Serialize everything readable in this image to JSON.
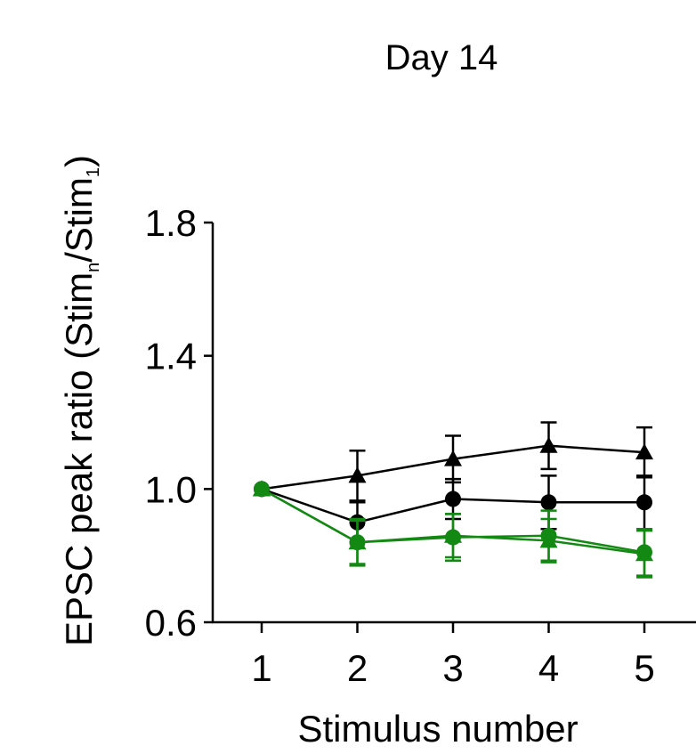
{
  "chart_data": {
    "type": "line",
    "title": "Day 14",
    "xlabel": "Stimulus number",
    "ylabel": {
      "prefix": "EPSC peak ratio (Stim",
      "sub1": "n",
      "mid": "/Stim",
      "sub2": "1",
      "suffix": ")"
    },
    "x": [
      1,
      2,
      3,
      4,
      5
    ],
    "xticks": [
      "1",
      "2",
      "3",
      "4",
      "5"
    ],
    "ylim": [
      0.6,
      1.8
    ],
    "yticks": [
      "0.6",
      "1.0",
      "1.4",
      "1.8"
    ],
    "grid": false,
    "legend": "none",
    "series": [
      {
        "marker": "triangle",
        "color": "#000000",
        "values": [
          1.0,
          1.04,
          1.09,
          1.13,
          1.11
        ],
        "errors": [
          0.0,
          0.075,
          0.07,
          0.07,
          0.075
        ]
      },
      {
        "marker": "circle",
        "color": "#000000",
        "values": [
          1.0,
          0.9,
          0.97,
          0.96,
          0.96
        ],
        "errors": [
          0.0,
          0.06,
          0.06,
          0.08,
          0.08
        ]
      },
      {
        "marker": "triangle",
        "color": "#138913",
        "values": [
          1.0,
          0.84,
          0.86,
          0.845,
          0.805
        ],
        "errors": [
          0.0,
          0.065,
          0.065,
          0.065,
          0.07
        ]
      },
      {
        "marker": "circle",
        "color": "#138913",
        "values": [
          1.0,
          0.84,
          0.855,
          0.86,
          0.81
        ],
        "errors": [
          0.0,
          0.07,
          0.07,
          0.075,
          0.07
        ]
      }
    ]
  }
}
